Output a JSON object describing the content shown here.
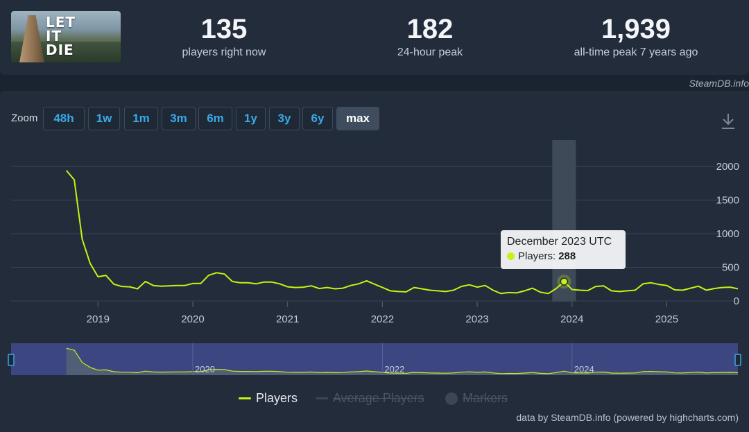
{
  "stats": {
    "current": {
      "value": "135",
      "label": "players right now"
    },
    "peak24": {
      "value": "182",
      "label": "24-hour peak"
    },
    "alltime": {
      "value": "1,939",
      "label": "all-time peak 7 years ago"
    }
  },
  "cover": {
    "logo_text": "LET IT DIE"
  },
  "source_credit": "SteamDB.info",
  "zoom": {
    "label": "Zoom",
    "buttons": [
      "48h",
      "1w",
      "1m",
      "3m",
      "6m",
      "1y",
      "3y",
      "6y",
      "max"
    ],
    "active": "max"
  },
  "tooltip": {
    "title": "December 2023 UTC",
    "series": "Players:",
    "value": "288"
  },
  "legend": [
    {
      "name": "Players",
      "enabled": true
    },
    {
      "name": "Average Players",
      "enabled": false
    },
    {
      "name": "Markers",
      "enabled": false
    }
  ],
  "footer_credit": "data by SteamDB.info (powered by highcharts.com)",
  "colors": {
    "series": "#c8f213",
    "accent": "#38a9e8",
    "background": "#1b2330",
    "panel": "#232c3a"
  },
  "icons": {
    "download": "download-icon"
  },
  "chart_data": {
    "type": "line",
    "title": "",
    "xlabel": "",
    "ylabel": "",
    "ylim": [
      0,
      2500
    ],
    "yticks": [
      0,
      500,
      1000,
      1500,
      2000
    ],
    "xlim": [
      "2018-02",
      "2025-10"
    ],
    "xticks": [
      "2019",
      "2020",
      "2021",
      "2022",
      "2023",
      "2024",
      "2025"
    ],
    "navigator_ticks": [
      "2020",
      "2022",
      "2024"
    ],
    "grid": true,
    "legend_position": "bottom-center",
    "highlight": {
      "x": "2023-12",
      "y": 288
    },
    "series": [
      {
        "name": "Players",
        "x": [
          "2018-09",
          "2018-10",
          "2018-11",
          "2018-12",
          "2019-01",
          "2019-02",
          "2019-03",
          "2019-04",
          "2019-05",
          "2019-06",
          "2019-07",
          "2019-08",
          "2019-09",
          "2019-10",
          "2019-11",
          "2019-12",
          "2020-01",
          "2020-02",
          "2020-03",
          "2020-04",
          "2020-05",
          "2020-06",
          "2020-07",
          "2020-08",
          "2020-09",
          "2020-10",
          "2020-11",
          "2020-12",
          "2021-01",
          "2021-02",
          "2021-03",
          "2021-04",
          "2021-05",
          "2021-06",
          "2021-07",
          "2021-08",
          "2021-09",
          "2021-10",
          "2021-11",
          "2021-12",
          "2022-01",
          "2022-02",
          "2022-03",
          "2022-04",
          "2022-05",
          "2022-06",
          "2022-07",
          "2022-08",
          "2022-09",
          "2022-10",
          "2022-11",
          "2022-12",
          "2023-01",
          "2023-02",
          "2023-03",
          "2023-04",
          "2023-05",
          "2023-06",
          "2023-07",
          "2023-08",
          "2023-09",
          "2023-10",
          "2023-11",
          "2023-12",
          "2024-01",
          "2024-02",
          "2024-03",
          "2024-04",
          "2024-05",
          "2024-06",
          "2024-07",
          "2024-08",
          "2024-09",
          "2024-10",
          "2024-11",
          "2024-12",
          "2025-01",
          "2025-02",
          "2025-03",
          "2025-04",
          "2025-05",
          "2025-06",
          "2025-07",
          "2025-08",
          "2025-09",
          "2025-10"
        ],
        "values": [
          1939,
          1800,
          920,
          560,
          360,
          380,
          250,
          215,
          210,
          180,
          290,
          230,
          220,
          225,
          230,
          230,
          260,
          260,
          380,
          420,
          400,
          290,
          270,
          270,
          255,
          280,
          280,
          255,
          210,
          200,
          205,
          225,
          185,
          200,
          180,
          190,
          230,
          255,
          300,
          250,
          200,
          150,
          140,
          135,
          200,
          180,
          160,
          150,
          140,
          160,
          215,
          240,
          205,
          230,
          160,
          110,
          125,
          120,
          150,
          190,
          130,
          110,
          185,
          288,
          170,
          160,
          155,
          215,
          225,
          150,
          140,
          150,
          160,
          255,
          270,
          245,
          230,
          165,
          160,
          190,
          220,
          160,
          185,
          200,
          205,
          180
        ]
      }
    ]
  }
}
